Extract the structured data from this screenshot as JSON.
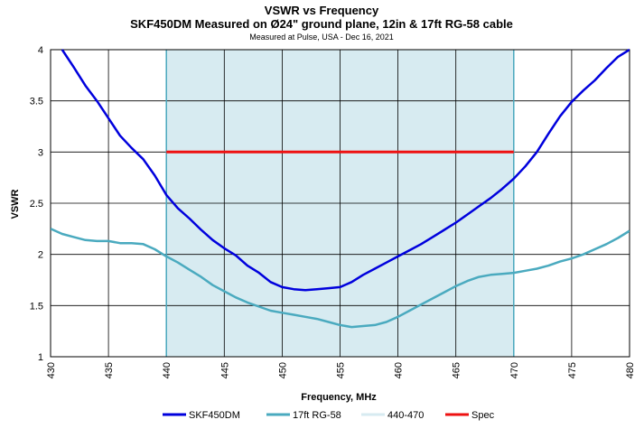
{
  "chart_data": {
    "type": "line",
    "title": "VSWR vs Frequency",
    "subtitle": "SKF450DM Measured on Ø24\" ground plane, 12in & 17ft RG-58 cable",
    "note": "Measured at Pulse, USA - Dec 16, 2021",
    "xlabel": "Frequency, MHz",
    "ylabel": "VSWR",
    "xlim": [
      430,
      480
    ],
    "ylim": [
      1,
      4
    ],
    "x_ticks": [
      "430",
      "435",
      "440",
      "445",
      "450",
      "455",
      "460",
      "465",
      "470",
      "475",
      "480"
    ],
    "y_ticks": [
      "1",
      "1.5",
      "2",
      "2.5",
      "3",
      "3.5",
      "4"
    ],
    "grid": true,
    "legend_position": "bottom",
    "band": {
      "name": "440-470",
      "x_start": 440,
      "x_end": 470,
      "color": "#d7ebf1"
    },
    "series": [
      {
        "name": "SKF450DM",
        "color": "#0000dd",
        "x": [
          431,
          432,
          433,
          434,
          435,
          436,
          437,
          438,
          439,
          440,
          441,
          442,
          443,
          444,
          445,
          446,
          447,
          448,
          449,
          450,
          451,
          452,
          453,
          454,
          455,
          456,
          457,
          458,
          459,
          460,
          461,
          462,
          463,
          464,
          465,
          466,
          467,
          468,
          469,
          470,
          471,
          472,
          473,
          474,
          475,
          476,
          477,
          478,
          479,
          480
        ],
        "values": [
          4.0,
          3.83,
          3.65,
          3.5,
          3.33,
          3.16,
          3.04,
          2.93,
          2.77,
          2.58,
          2.45,
          2.35,
          2.24,
          2.14,
          2.06,
          1.99,
          1.89,
          1.82,
          1.73,
          1.68,
          1.66,
          1.65,
          1.66,
          1.67,
          1.68,
          1.73,
          1.8,
          1.86,
          1.92,
          1.98,
          2.04,
          2.1,
          2.17,
          2.24,
          2.31,
          2.39,
          2.47,
          2.55,
          2.64,
          2.74,
          2.86,
          3.0,
          3.18,
          3.35,
          3.49,
          3.6,
          3.7,
          3.82,
          3.93,
          4.0
        ]
      },
      {
        "name": "17ft RG-58",
        "color": "#4aaabf",
        "x": [
          430,
          431,
          432,
          433,
          434,
          435,
          436,
          437,
          438,
          439,
          440,
          441,
          442,
          443,
          444,
          445,
          446,
          447,
          448,
          449,
          450,
          451,
          452,
          453,
          454,
          455,
          456,
          457,
          458,
          459,
          460,
          461,
          462,
          463,
          464,
          465,
          466,
          467,
          468,
          469,
          470,
          471,
          472,
          473,
          474,
          475,
          476,
          477,
          478,
          479,
          480
        ],
        "values": [
          2.25,
          2.2,
          2.17,
          2.14,
          2.13,
          2.13,
          2.11,
          2.11,
          2.1,
          2.05,
          1.98,
          1.92,
          1.85,
          1.78,
          1.7,
          1.64,
          1.58,
          1.53,
          1.49,
          1.45,
          1.43,
          1.41,
          1.39,
          1.37,
          1.34,
          1.31,
          1.29,
          1.3,
          1.31,
          1.34,
          1.39,
          1.45,
          1.51,
          1.57,
          1.63,
          1.69,
          1.74,
          1.78,
          1.8,
          1.81,
          1.82,
          1.84,
          1.86,
          1.89,
          1.93,
          1.96,
          2.0,
          2.05,
          2.1,
          2.16,
          2.23
        ]
      },
      {
        "name": "Spec",
        "color": "#ee1111",
        "x": [
          440,
          470
        ],
        "values": [
          3.0,
          3.0
        ]
      }
    ]
  }
}
